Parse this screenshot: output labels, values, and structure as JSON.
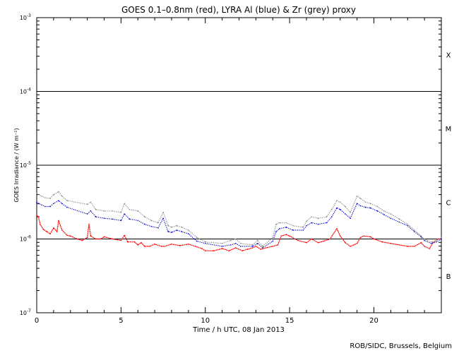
{
  "chart_data": {
    "type": "scatter",
    "title": "GOES 0.1–0.8nm (red), LYRA Al (blue) & Zr (grey) proxy",
    "xlabel": "Time / h UTC, 08 Jan 2013",
    "ylabel": "GOES Irradiance / (W m⁻²)",
    "credit": "ROB/SIDC, Brussels, Belgium",
    "xlim": [
      0,
      24
    ],
    "ylim": [
      1e-07,
      0.001
    ],
    "log_y": true,
    "x_ticks": [
      {
        "v": 0,
        "label": "0"
      },
      {
        "v": 5,
        "label": "5"
      },
      {
        "v": 10,
        "label": "10"
      },
      {
        "v": 15,
        "label": "15"
      },
      {
        "v": 20,
        "label": "20"
      }
    ],
    "y_ticks": [
      {
        "exp": -7,
        "base": "10",
        "sup": "-7"
      },
      {
        "exp": -6,
        "base": "10",
        "sup": "-6"
      },
      {
        "exp": -5,
        "base": "10",
        "sup": "-5"
      },
      {
        "exp": -4,
        "base": "10",
        "sup": "-4"
      },
      {
        "exp": -3,
        "base": "10",
        "sup": "-3"
      }
    ],
    "flare_classes": [
      {
        "label": "X",
        "exp": -3.5
      },
      {
        "label": "M",
        "exp": -4.5
      },
      {
        "label": "C",
        "exp": -5.5
      },
      {
        "label": "B",
        "exp": -6.5
      }
    ],
    "class_lines": [
      1e-06,
      1e-05,
      0.0001
    ],
    "series": [
      {
        "color": "#ff0000",
        "points": [
          [
            0.0,
            -5.68
          ],
          [
            0.1,
            -5.7
          ],
          [
            0.2,
            -5.8
          ],
          [
            0.4,
            -5.87
          ],
          [
            0.6,
            -5.9
          ],
          [
            0.8,
            -5.93
          ],
          [
            1.0,
            -5.85
          ],
          [
            1.2,
            -5.9
          ],
          [
            1.3,
            -5.75
          ],
          [
            1.5,
            -5.88
          ],
          [
            1.8,
            -5.95
          ],
          [
            2.0,
            -5.96
          ],
          [
            2.4,
            -6.0
          ],
          [
            2.7,
            -6.02
          ],
          [
            3.0,
            -5.98
          ],
          [
            3.1,
            -5.8
          ],
          [
            3.2,
            -5.96
          ],
          [
            3.5,
            -6.0
          ],
          [
            3.8,
            -6.0
          ],
          [
            4.0,
            -5.97
          ],
          [
            4.5,
            -6.0
          ],
          [
            5.0,
            -6.02
          ],
          [
            5.2,
            -5.95
          ],
          [
            5.4,
            -6.04
          ],
          [
            5.8,
            -6.04
          ],
          [
            6.0,
            -6.08
          ],
          [
            6.2,
            -6.05
          ],
          [
            6.4,
            -6.1
          ],
          [
            6.7,
            -6.1
          ],
          [
            7.0,
            -6.07
          ],
          [
            7.4,
            -6.1
          ],
          [
            7.6,
            -6.1
          ],
          [
            8.0,
            -6.07
          ],
          [
            8.5,
            -6.09
          ],
          [
            9.0,
            -6.07
          ],
          [
            9.4,
            -6.1
          ],
          [
            9.8,
            -6.13
          ],
          [
            10.0,
            -6.16
          ],
          [
            10.5,
            -6.16
          ],
          [
            11.0,
            -6.13
          ],
          [
            11.4,
            -6.16
          ],
          [
            11.8,
            -6.12
          ],
          [
            12.2,
            -6.16
          ],
          [
            12.5,
            -6.14
          ],
          [
            12.8,
            -6.12
          ],
          [
            13.0,
            -6.1
          ],
          [
            13.3,
            -6.14
          ],
          [
            13.6,
            -6.12
          ],
          [
            14.0,
            -6.1
          ],
          [
            14.3,
            -6.08
          ],
          [
            14.5,
            -5.96
          ],
          [
            14.8,
            -5.94
          ],
          [
            15.0,
            -5.96
          ],
          [
            15.5,
            -6.02
          ],
          [
            16.0,
            -6.05
          ],
          [
            16.3,
            -6.0
          ],
          [
            16.7,
            -6.05
          ],
          [
            17.0,
            -6.03
          ],
          [
            17.4,
            -6.0
          ],
          [
            17.8,
            -5.86
          ],
          [
            18.0,
            -5.96
          ],
          [
            18.3,
            -6.05
          ],
          [
            18.6,
            -6.1
          ],
          [
            18.8,
            -6.08
          ],
          [
            19.0,
            -6.06
          ],
          [
            19.2,
            -5.98
          ],
          [
            19.4,
            -5.96
          ],
          [
            19.8,
            -5.97
          ],
          [
            20.0,
            -6.0
          ],
          [
            20.5,
            -6.04
          ],
          [
            21.0,
            -6.06
          ],
          [
            21.5,
            -6.08
          ],
          [
            22.0,
            -6.1
          ],
          [
            22.4,
            -6.1
          ],
          [
            22.8,
            -6.05
          ],
          [
            23.0,
            -6.1
          ],
          [
            23.3,
            -6.13
          ],
          [
            23.5,
            -6.05
          ],
          [
            23.8,
            -6.0
          ],
          [
            24.0,
            -6.0
          ]
        ]
      },
      {
        "color": "#0000cc",
        "points": [
          [
            0.0,
            -5.5
          ],
          [
            0.3,
            -5.54
          ],
          [
            0.5,
            -5.56
          ],
          [
            0.8,
            -5.56
          ],
          [
            1.0,
            -5.52
          ],
          [
            1.3,
            -5.48
          ],
          [
            1.5,
            -5.52
          ],
          [
            1.8,
            -5.57
          ],
          [
            3.0,
            -5.66
          ],
          [
            3.2,
            -5.62
          ],
          [
            3.5,
            -5.7
          ],
          [
            4.0,
            -5.72
          ],
          [
            4.5,
            -5.73
          ],
          [
            5.0,
            -5.75
          ],
          [
            5.2,
            -5.66
          ],
          [
            5.5,
            -5.73
          ],
          [
            6.0,
            -5.75
          ],
          [
            6.4,
            -5.8
          ],
          [
            6.8,
            -5.83
          ],
          [
            7.2,
            -5.85
          ],
          [
            7.5,
            -5.72
          ],
          [
            7.8,
            -5.9
          ],
          [
            8.0,
            -5.91
          ],
          [
            8.3,
            -5.88
          ],
          [
            8.6,
            -5.9
          ],
          [
            9.0,
            -5.93
          ],
          [
            9.5,
            -6.03
          ],
          [
            10.0,
            -6.06
          ],
          [
            11.0,
            -6.1
          ],
          [
            11.5,
            -6.08
          ],
          [
            11.8,
            -6.06
          ],
          [
            12.1,
            -6.1
          ],
          [
            12.8,
            -6.1
          ],
          [
            13.1,
            -6.06
          ],
          [
            13.4,
            -6.12
          ],
          [
            14.0,
            -6.03
          ],
          [
            14.2,
            -5.9
          ],
          [
            14.4,
            -5.86
          ],
          [
            14.8,
            -5.84
          ],
          [
            15.2,
            -5.88
          ],
          [
            15.8,
            -5.88
          ],
          [
            16.0,
            -5.82
          ],
          [
            16.3,
            -5.78
          ],
          [
            16.7,
            -5.8
          ],
          [
            17.2,
            -5.78
          ],
          [
            17.5,
            -5.7
          ],
          [
            17.8,
            -5.58
          ],
          [
            18.0,
            -5.6
          ],
          [
            18.3,
            -5.66
          ],
          [
            18.6,
            -5.72
          ],
          [
            19.0,
            -5.52
          ],
          [
            19.2,
            -5.55
          ],
          [
            19.5,
            -5.57
          ],
          [
            19.8,
            -5.58
          ],
          [
            20.2,
            -5.62
          ],
          [
            20.6,
            -5.67
          ],
          [
            21.0,
            -5.72
          ],
          [
            21.5,
            -5.77
          ],
          [
            22.0,
            -5.82
          ],
          [
            22.4,
            -5.9
          ],
          [
            22.8,
            -5.97
          ],
          [
            23.0,
            -6.02
          ],
          [
            23.4,
            -6.06
          ],
          [
            23.7,
            -6.04
          ],
          [
            24.0,
            -6.0
          ]
        ]
      },
      {
        "color": "#888888",
        "points": [
          [
            0.0,
            -5.38
          ],
          [
            0.3,
            -5.42
          ],
          [
            0.5,
            -5.44
          ],
          [
            0.8,
            -5.45
          ],
          [
            1.0,
            -5.4
          ],
          [
            1.3,
            -5.36
          ],
          [
            1.5,
            -5.42
          ],
          [
            1.8,
            -5.48
          ],
          [
            3.0,
            -5.53
          ],
          [
            3.2,
            -5.5
          ],
          [
            3.5,
            -5.6
          ],
          [
            4.0,
            -5.62
          ],
          [
            4.5,
            -5.62
          ],
          [
            5.0,
            -5.64
          ],
          [
            5.2,
            -5.52
          ],
          [
            5.5,
            -5.6
          ],
          [
            6.0,
            -5.62
          ],
          [
            6.4,
            -5.7
          ],
          [
            6.8,
            -5.75
          ],
          [
            7.2,
            -5.78
          ],
          [
            7.5,
            -5.64
          ],
          [
            7.8,
            -5.82
          ],
          [
            8.0,
            -5.84
          ],
          [
            8.3,
            -5.82
          ],
          [
            8.6,
            -5.84
          ],
          [
            9.0,
            -5.88
          ],
          [
            9.5,
            -5.98
          ],
          [
            10.0,
            -6.04
          ],
          [
            11.0,
            -6.06
          ],
          [
            11.5,
            -6.02
          ],
          [
            11.8,
            -6.0
          ],
          [
            12.1,
            -6.06
          ],
          [
            12.8,
            -6.08
          ],
          [
            13.1,
            -6.02
          ],
          [
            13.4,
            -6.1
          ],
          [
            14.0,
            -5.98
          ],
          [
            14.2,
            -5.8
          ],
          [
            14.4,
            -5.78
          ],
          [
            14.8,
            -5.78
          ],
          [
            15.2,
            -5.82
          ],
          [
            15.8,
            -5.84
          ],
          [
            16.0,
            -5.76
          ],
          [
            16.3,
            -5.7
          ],
          [
            16.7,
            -5.72
          ],
          [
            17.2,
            -5.7
          ],
          [
            17.5,
            -5.6
          ],
          [
            17.8,
            -5.48
          ],
          [
            18.0,
            -5.5
          ],
          [
            18.3,
            -5.56
          ],
          [
            18.6,
            -5.64
          ],
          [
            19.0,
            -5.42
          ],
          [
            19.2,
            -5.45
          ],
          [
            19.5,
            -5.5
          ],
          [
            19.8,
            -5.52
          ],
          [
            20.2,
            -5.56
          ],
          [
            20.6,
            -5.62
          ],
          [
            21.0,
            -5.66
          ],
          [
            21.5,
            -5.73
          ],
          [
            22.0,
            -5.8
          ],
          [
            22.4,
            -5.88
          ],
          [
            22.8,
            -5.96
          ],
          [
            23.0,
            -6.0
          ],
          [
            23.4,
            -6.04
          ],
          [
            23.7,
            -6.02
          ],
          [
            24.0,
            -5.98
          ]
        ]
      }
    ]
  }
}
